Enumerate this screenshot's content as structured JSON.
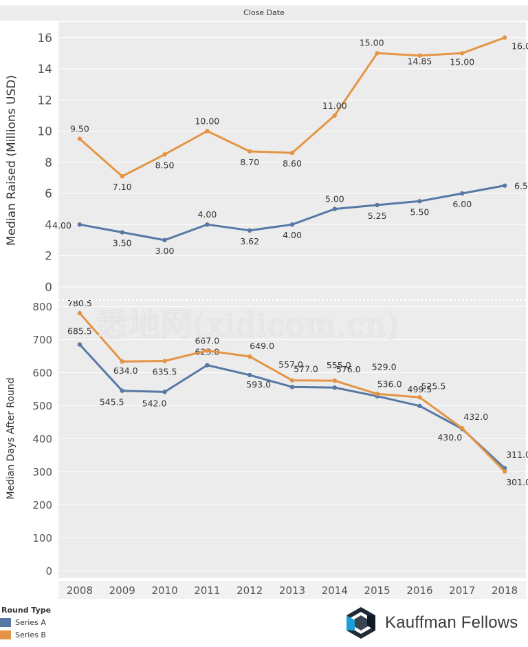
{
  "header": {
    "title": "Close Date"
  },
  "colors": {
    "series_a": "#5778a4",
    "series_b": "#e49444",
    "panel_bg": "#ececec",
    "grid": "#ffffff"
  },
  "legend": {
    "title": "Round Type",
    "items": [
      {
        "label": "Series A",
        "color": "#5778a4"
      },
      {
        "label": "Series B",
        "color": "#e49444"
      }
    ]
  },
  "logo": {
    "text": "Kauffman Fellows"
  },
  "watermark": {
    "text": "悉地网(xidicom.cn)"
  },
  "chart_data": [
    {
      "type": "line",
      "ylabel": "Median Raised (Millions USD)",
      "ylim": [
        0,
        17
      ],
      "yticks": [
        0,
        2,
        4,
        6,
        8,
        10,
        12,
        14,
        16
      ],
      "categories": [
        "2008",
        "2009",
        "2010",
        "2011",
        "2012",
        "2013",
        "2014",
        "2015",
        "2016",
        "2017",
        "2018"
      ],
      "series": [
        {
          "name": "Series A",
          "values": [
            4.0,
            3.5,
            3.0,
            4.0,
            3.62,
            4.0,
            5.0,
            5.25,
            5.5,
            6.0,
            6.5
          ],
          "labels": [
            "4.00",
            "3.50",
            "3.00",
            "4.00",
            "3.62",
            "4.00",
            "5.00",
            "5.25",
            "5.50",
            "6.00",
            "6.50"
          ]
        },
        {
          "name": "Series B",
          "values": [
            9.5,
            7.1,
            8.5,
            10.0,
            8.7,
            8.6,
            11.0,
            15.0,
            14.85,
            15.0,
            16.0
          ],
          "labels": [
            "9.50",
            "7.10",
            "8.50",
            "10.00",
            "8.70",
            "8.60",
            "11.00",
            "15.00",
            "14.85",
            "15.00",
            "16.00"
          ]
        }
      ]
    },
    {
      "type": "line",
      "ylabel": "Median Days After Round",
      "ylim": [
        0,
        820
      ],
      "yticks": [
        0,
        100,
        200,
        300,
        400,
        500,
        600,
        700,
        800
      ],
      "xlabel": "",
      "categories": [
        "2008",
        "2009",
        "2010",
        "2011",
        "2012",
        "2013",
        "2014",
        "2015",
        "2016",
        "2017",
        "2018"
      ],
      "series": [
        {
          "name": "Series A",
          "values": [
            685.5,
            545.5,
            542.0,
            623.0,
            593.0,
            557.0,
            555.0,
            529.0,
            499.5,
            430.0,
            311.0
          ],
          "labels": [
            "685.5",
            "545.5",
            "542.0",
            "623.0",
            "593.0",
            "557.0",
            "555.0",
            "529.0",
            "499.5",
            "430.0",
            "311.0"
          ]
        },
        {
          "name": "Series B",
          "values": [
            780.5,
            634.0,
            635.5,
            667.0,
            649.0,
            577.0,
            576.0,
            536.0,
            525.5,
            432.0,
            301.0
          ],
          "labels": [
            "780.5",
            "634.0",
            "635.5",
            "667.0",
            "649.0",
            "577.0",
            "576.0",
            "536.0",
            "525.5",
            "432.0",
            "301.0"
          ]
        }
      ]
    }
  ]
}
